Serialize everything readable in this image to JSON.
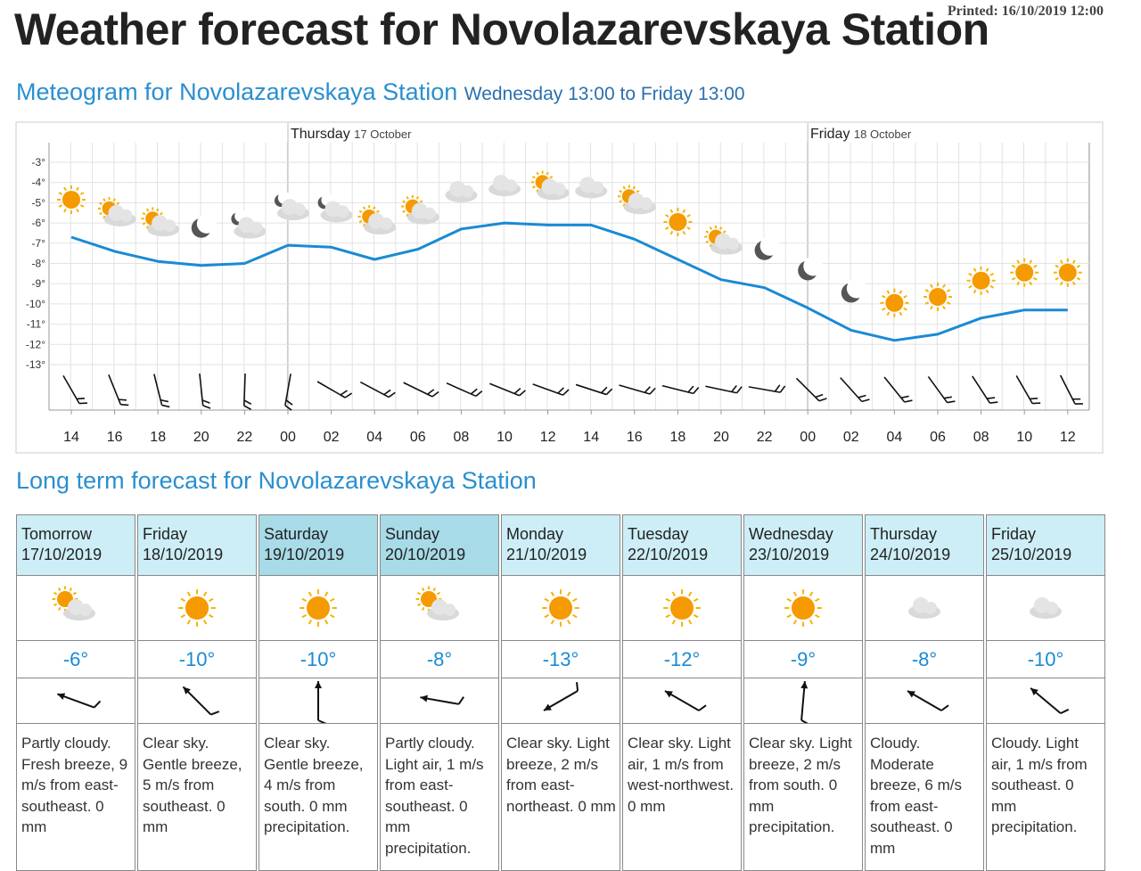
{
  "header": {
    "title": "Weather forecast for Novolazarevskaya Station",
    "printed": "Printed: 16/10/2019 12:00"
  },
  "meteogram": {
    "title": "Meteogram for Novolazarevskaya Station",
    "period": "Wednesday 13:00 to Friday 13:00",
    "days": [
      {
        "day": "Thursday",
        "date": "17 October"
      },
      {
        "day": "Friday",
        "date": "18 October"
      }
    ]
  },
  "chart_data": {
    "type": "line",
    "categories": [
      "14",
      "16",
      "18",
      "20",
      "22",
      "00",
      "02",
      "04",
      "06",
      "08",
      "10",
      "12",
      "14",
      "16",
      "18",
      "20",
      "22",
      "00",
      "02",
      "04",
      "06",
      "08",
      "10",
      "12"
    ],
    "values": [
      -6.7,
      -7.4,
      -7.9,
      -8.1,
      -8.0,
      -7.1,
      -7.2,
      -7.8,
      -7.3,
      -6.3,
      -6.0,
      -6.1,
      -6.1,
      -6.8,
      -7.8,
      -8.8,
      -9.2,
      -10.2,
      -11.3,
      -11.8,
      -11.5,
      -10.7,
      -10.3,
      -10.3
    ],
    "color": "#1a8ad4",
    "ylim": [
      -13,
      -3
    ],
    "yticks": [
      {
        "value": -3,
        "label": "-3°"
      },
      {
        "value": -4,
        "label": "-4°"
      },
      {
        "value": -5,
        "label": "-5°"
      },
      {
        "value": -6,
        "label": "-6°"
      },
      {
        "value": -7,
        "label": "-7°"
      },
      {
        "value": -8,
        "label": "-8°"
      },
      {
        "value": -9,
        "label": "-9°"
      },
      {
        "value": -10,
        "label": "-10°"
      },
      {
        "value": -11,
        "label": "-11°"
      },
      {
        "value": -12,
        "label": "-12°"
      },
      {
        "value": -13,
        "label": "-13°"
      }
    ],
    "grid": true
  },
  "long_term": {
    "title": "Long term forecast for Novolazarevskaya Station",
    "columns": [
      {
        "day": "Tomorrow",
        "date": "17/10/2019",
        "temperature": "-6°",
        "description": "Partly cloudy. Fresh breeze, 9 m/s from east-southeast. 0 mm"
      },
      {
        "day": "Friday",
        "date": "18/10/2019",
        "temperature": "-10°",
        "description": "Clear sky. Gentle breeze, 5 m/s from southeast. 0 mm"
      },
      {
        "day": "Saturday",
        "date": "19/10/2019",
        "temperature": "-10°",
        "description": "Clear sky. Gentle breeze, 4 m/s from south. 0 mm precipitation."
      },
      {
        "day": "Sunday",
        "date": "20/10/2019",
        "temperature": "-8°",
        "description": "Partly cloudy. Light air, 1 m/s from east-southeast. 0 mm precipitation."
      },
      {
        "day": "Monday",
        "date": "21/10/2019",
        "temperature": "-13°",
        "description": "Clear sky. Light breeze, 2 m/s from east-northeast. 0 mm"
      },
      {
        "day": "Tuesday",
        "date": "22/10/2019",
        "temperature": "-12°",
        "description": "Clear sky. Light air, 1 m/s from west-northwest. 0 mm"
      },
      {
        "day": "Wednesday",
        "date": "23/10/2019",
        "temperature": "-9°",
        "description": "Clear sky. Light breeze, 2 m/s from south. 0 mm precipitation."
      },
      {
        "day": "Thursday",
        "date": "24/10/2019",
        "temperature": "-8°",
        "description": "Cloudy. Moderate breeze, 6 m/s from east-southeast. 0 mm"
      },
      {
        "day": "Friday",
        "date": "25/10/2019",
        "temperature": "-10°",
        "description": "Cloudy. Light air, 1 m/s from southeast. 0 mm precipitation."
      }
    ]
  }
}
